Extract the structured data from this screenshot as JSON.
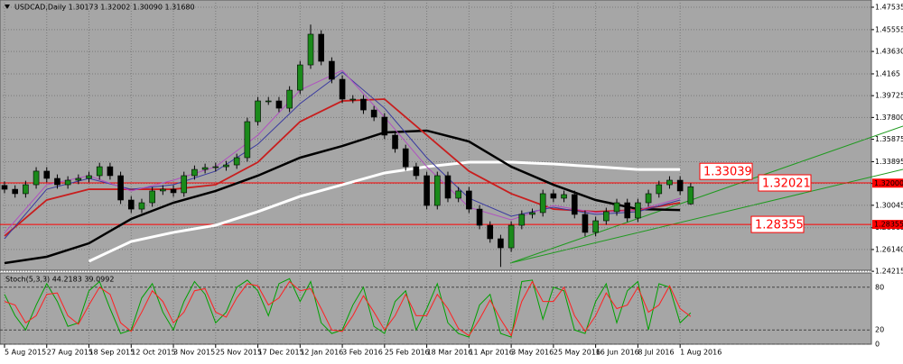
{
  "chart_data": {
    "type": "candlestick",
    "title": "USDCAD,Daily  1.30173 1.32002 1.30090 1.31680",
    "categories": [
      "5 Aug 2015",
      null,
      null,
      null,
      "27 Aug 2015",
      null,
      null,
      null,
      "18 Sep 2015",
      null,
      null,
      null,
      "12 Oct 2015",
      null,
      null,
      null,
      "3 Nov 2015",
      null,
      null,
      null,
      "25 Nov 2015",
      null,
      null,
      null,
      "17 Dec 2015",
      null,
      null,
      null,
      "12 Jan 2016",
      null,
      null,
      null,
      "3 Feb 2016",
      null,
      null,
      null,
      "25 Feb 2016",
      null,
      null,
      null,
      "18 Mar 2016",
      null,
      null,
      null,
      "11 Apr 2016",
      null,
      null,
      null,
      "3 May 2016",
      null,
      null,
      null,
      "25 May 2016",
      null,
      null,
      null,
      "16 Jun 2016",
      null,
      null,
      null,
      "8 Jul 2016",
      null,
      null,
      null,
      "1 Aug 2016",
      null
    ],
    "open": [
      1.318,
      1.3146,
      1.3107,
      1.3186,
      1.3306,
      1.3242,
      1.3186,
      1.3226,
      1.3242,
      1.3266,
      1.3345,
      1.3266,
      1.3051,
      1.2971,
      1.3027,
      1.3131,
      1.3146,
      1.3115,
      1.3266,
      1.3321,
      1.3337,
      1.3345,
      1.3361,
      1.3425,
      1.3743,
      1.3926,
      1.3926,
      1.3862,
      1.4021,
      1.4244,
      1.4515,
      1.4276,
      1.4117,
      1.3942,
      1.3942,
      1.3846,
      1.3783,
      1.3624,
      1.3504,
      1.3345,
      1.3266,
      1.3003,
      1.3266,
      1.3067,
      1.3131,
      1.2971,
      1.2828,
      1.2709,
      1.2629,
      1.2828,
      1.2924,
      1.294,
      1.3107,
      1.3067,
      1.3099,
      1.2924,
      1.2765,
      1.2868,
      1.2948,
      1.3027,
      1.2892,
      1.3027,
      1.3107,
      1.3186,
      1.3226,
      1.3017
    ],
    "high": [
      1.3215,
      1.3181,
      1.3221,
      1.3341,
      1.3341,
      1.3277,
      1.3261,
      1.3277,
      1.3301,
      1.338,
      1.338,
      1.3301,
      1.3086,
      1.3062,
      1.3166,
      1.3181,
      1.3181,
      1.3301,
      1.3356,
      1.3372,
      1.338,
      1.3396,
      1.346,
      1.3778,
      1.3961,
      1.3961,
      1.3961,
      1.4056,
      1.4279,
      1.46,
      1.455,
      1.4311,
      1.4152,
      1.3977,
      1.3977,
      1.3881,
      1.3818,
      1.3659,
      1.3539,
      1.338,
      1.3301,
      1.3301,
      1.3301,
      1.3166,
      1.3166,
      1.3006,
      1.2863,
      1.2744,
      1.2863,
      1.2959,
      1.2975,
      1.3142,
      1.3142,
      1.3134,
      1.3134,
      1.2959,
      1.2903,
      1.2983,
      1.3062,
      1.3062,
      1.3062,
      1.3142,
      1.3221,
      1.3261,
      1.3261,
      1.32
    ],
    "low": [
      1.3111,
      1.3072,
      1.3072,
      1.3151,
      1.3207,
      1.3151,
      1.3151,
      1.3191,
      1.3207,
      1.3231,
      1.3231,
      1.3016,
      1.2936,
      1.2936,
      1.2992,
      1.3096,
      1.308,
      1.308,
      1.3231,
      1.3286,
      1.3302,
      1.331,
      1.3326,
      1.339,
      1.3708,
      1.3891,
      1.3827,
      1.3827,
      1.3986,
      1.4209,
      1.4241,
      1.4082,
      1.3907,
      1.3907,
      1.3811,
      1.3748,
      1.3589,
      1.3469,
      1.331,
      1.3231,
      1.2968,
      1.2968,
      1.3032,
      1.3032,
      1.2936,
      1.2793,
      1.2674,
      1.246,
      1.2594,
      1.2793,
      1.2889,
      1.2905,
      1.3032,
      1.3032,
      1.2889,
      1.273,
      1.273,
      1.2833,
      1.2913,
      1.2857,
      1.2857,
      1.2992,
      1.3072,
      1.3151,
      1.3096,
      1.3009
    ],
    "close": [
      1.3146,
      1.3107,
      1.3186,
      1.3306,
      1.3242,
      1.3186,
      1.3226,
      1.3242,
      1.3266,
      1.3345,
      1.3266,
      1.3051,
      1.2971,
      1.3027,
      1.3131,
      1.3146,
      1.3115,
      1.3266,
      1.3321,
      1.3337,
      1.3345,
      1.3361,
      1.3425,
      1.3743,
      1.3926,
      1.3926,
      1.3862,
      1.4021,
      1.4244,
      1.4515,
      1.4276,
      1.4117,
      1.3942,
      1.3942,
      1.3846,
      1.3783,
      1.3624,
      1.3504,
      1.3345,
      1.3266,
      1.3003,
      1.3266,
      1.3067,
      1.3131,
      1.2971,
      1.2828,
      1.2709,
      1.2629,
      1.2828,
      1.2924,
      1.294,
      1.3107,
      1.3067,
      1.3099,
      1.2924,
      1.2765,
      1.2868,
      1.2948,
      1.3027,
      1.2892,
      1.3027,
      1.3107,
      1.3186,
      1.3226,
      1.3131,
      1.3168
    ],
    "up_color": "#1a8a1a",
    "down_color": "#000000",
    "moving_averages": [
      {
        "color": "#ffffff",
        "width": 3,
        "values": [
          null,
          null,
          1.251,
          1.2685,
          1.2765,
          1.2828,
          1.2948,
          1.3083,
          1.3186,
          1.329,
          1.3345,
          1.3385,
          1.3385,
          1.3369,
          1.3345,
          1.3321,
          1.3321
        ]
      },
      {
        "color": "#000000",
        "width": 2.5,
        "values": [
          1.2494,
          1.255,
          1.2669,
          1.2884,
          1.3027,
          1.3131,
          1.3266,
          1.3425,
          1.3528,
          1.3648,
          1.3664,
          1.3568,
          1.3345,
          1.3186,
          1.3051,
          1.2971,
          1.2963
        ]
      },
      {
        "color": "#c81e1e",
        "width": 1.8,
        "values": [
          1.2733,
          1.3051,
          1.3146,
          1.3146,
          1.3146,
          1.3186,
          1.3385,
          1.3743,
          1.3926,
          1.3942,
          1.3624,
          1.3306,
          1.3107,
          1.2971,
          1.2948,
          1.2963,
          1.3027
        ]
      },
      {
        "color": "#3a3aa0",
        "width": 1,
        "values": [
          1.2709,
          1.3146,
          1.3242,
          1.3146,
          1.3186,
          1.3306,
          1.3544,
          1.3902,
          1.4181,
          1.3862,
          1.3425,
          1.3067,
          1.2908,
          1.2987,
          1.2924,
          1.2948,
          1.3051
        ]
      },
      {
        "color": "#b050c0",
        "width": 1,
        "values": [
          1.276,
          1.3186,
          1.3266,
          1.3131,
          1.3226,
          1.3345,
          1.3624,
          1.4021,
          1.4196,
          1.3783,
          1.3345,
          1.2987,
          1.2876,
          1.3003,
          1.294,
          1.2963,
          1.3067
        ]
      }
    ],
    "levels": [
      {
        "value": 1.33039,
        "line": false
      },
      {
        "value": 1.32021,
        "line": true
      },
      {
        "value": 1.28355,
        "line": true
      }
    ],
    "level_color": "#ff0000",
    "axis_markers": [
      {
        "value": 1.32,
        "label": "1.32000"
      },
      1.28355
    ],
    "ylim": [
      1.24305,
      1.48171
    ],
    "yticks": [
      1.47535,
      1.45555,
      {
        "value": 1.4363,
        "label": "1.43630"
      },
      1.4165,
      1.39725,
      {
        "value": 1.378,
        "label": "1.37800"
      },
      1.35875,
      1.33895,
      {
        "value": 1.3197,
        "label": "1.31970"
      },
      1.30045,
      1.28065,
      {
        "value": 1.2614,
        "label": "1.26140"
      },
      1.24215
    ],
    "grid": true,
    "stoch": {
      "title": "Stoch(5,3,3) 44.2183 39.0992",
      "ylim": [
        0,
        100
      ],
      "yticks": [
        80,
        20,
        0
      ],
      "main_color": "#00a000",
      "signal_color": "#ff2020",
      "main": [
        70,
        40,
        20,
        55,
        85,
        60,
        25,
        30,
        75,
        88,
        50,
        15,
        20,
        65,
        85,
        45,
        20,
        60,
        88,
        70,
        30,
        45,
        80,
        90,
        75,
        40,
        85,
        92,
        60,
        88,
        30,
        15,
        20,
        55,
        80,
        25,
        15,
        60,
        75,
        20,
        50,
        85,
        30,
        15,
        10,
        55,
        70,
        15,
        10,
        88,
        90,
        35,
        80,
        75,
        20,
        15,
        60,
        85,
        30,
        75,
        88,
        20,
        85,
        80,
        30,
        44
      ],
      "signal": [
        60,
        55,
        30,
        40,
        70,
        72,
        40,
        28,
        55,
        80,
        70,
        30,
        18,
        45,
        75,
        60,
        30,
        45,
        75,
        78,
        45,
        38,
        65,
        85,
        82,
        55,
        65,
        88,
        75,
        78,
        50,
        20,
        18,
        40,
        68,
        45,
        20,
        40,
        70,
        40,
        40,
        70,
        50,
        22,
        12,
        35,
        62,
        35,
        12,
        60,
        88,
        60,
        60,
        80,
        40,
        18,
        40,
        72,
        50,
        55,
        80,
        45,
        55,
        82,
        50,
        39
      ]
    }
  }
}
